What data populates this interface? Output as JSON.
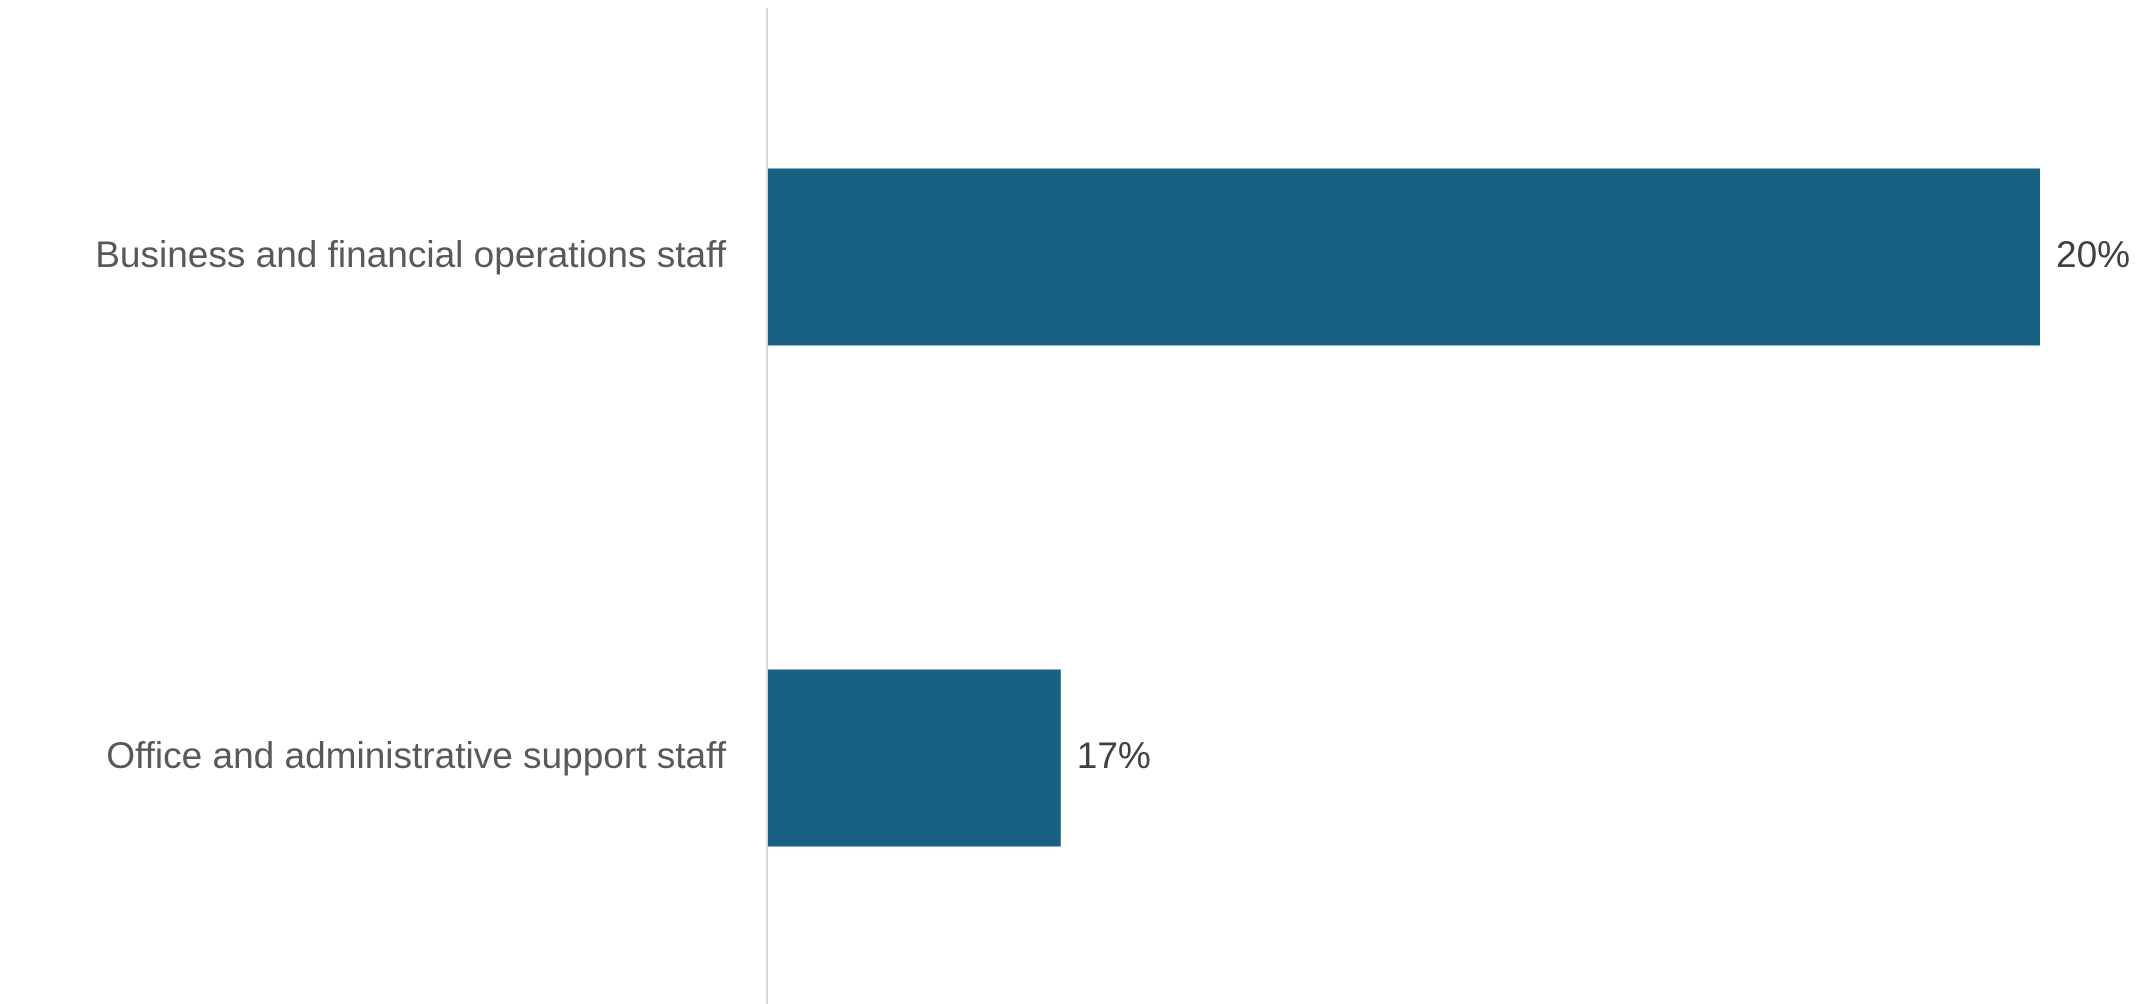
{
  "chart_data": {
    "type": "bar",
    "orientation": "horizontal",
    "categories": [
      "Business and financial operations staff",
      "Office and administrative support staff"
    ],
    "values": [
      20,
      17
    ],
    "data_labels": [
      "20%",
      "17%"
    ],
    "unit": "%",
    "title": "",
    "xlabel": "",
    "ylabel": "",
    "xlim": [
      16.1,
      20
    ],
    "grid": false,
    "legend": "none",
    "colors": {
      "bar": "#186182",
      "axis_line": "#d9d9d9",
      "category_text": "#595959",
      "value_text": "#404040"
    }
  }
}
